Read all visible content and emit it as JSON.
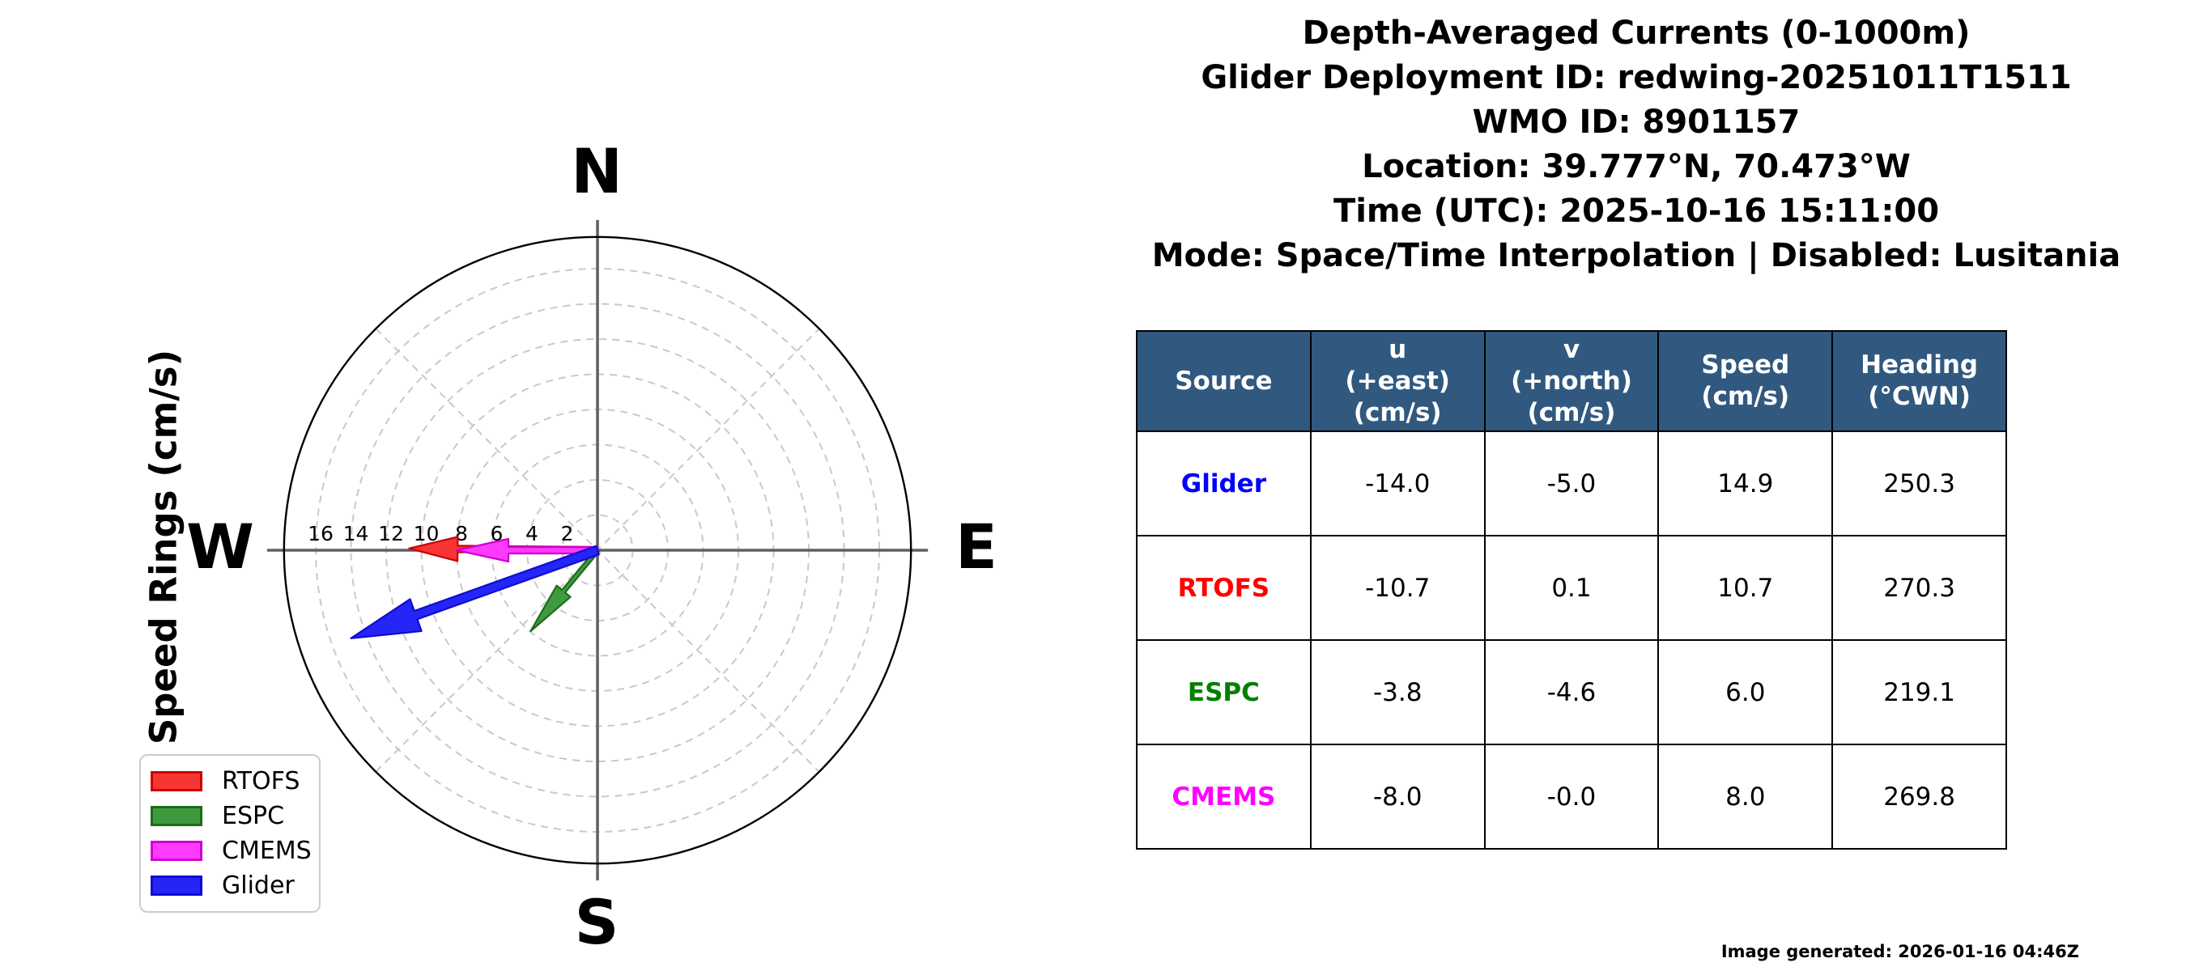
{
  "header": {
    "lines": [
      "Depth-Averaged Currents (0-1000m)",
      "Glider Deployment ID: redwing-20251011T1511",
      "WMO ID: 8901157",
      "Location: 39.777°N, 70.473°W",
      "Time (UTC): 2025-10-16 15:11:00",
      "Mode: Space/Time Interpolation | Disabled: Lusitania"
    ]
  },
  "table": {
    "header_bg": "#31597f",
    "columns": [
      "Source",
      "u\n(+east)\n(cm/s)",
      "v\n(+north)\n(cm/s)",
      "Speed\n(cm/s)",
      "Heading\n(°CWN)"
    ],
    "rows": [
      {
        "source": "Glider",
        "color": "#0000ff",
        "u": "-14.0",
        "v": "-5.0",
        "speed": "14.9",
        "heading": "250.3"
      },
      {
        "source": "RTOFS",
        "color": "#ff0000",
        "u": "-10.7",
        "v": "0.1",
        "speed": "10.7",
        "heading": "270.3"
      },
      {
        "source": "ESPC",
        "color": "#008000",
        "u": "-3.8",
        "v": "-4.6",
        "speed": "6.0",
        "heading": "219.1"
      },
      {
        "source": "CMEMS",
        "color": "#ff00ff",
        "u": "-8.0",
        "v": "-0.0",
        "speed": "8.0",
        "heading": "269.8"
      }
    ]
  },
  "chart_data": {
    "type": "polar_quiver",
    "axis_label": "Speed Rings (cm/s)",
    "compass": {
      "north": "N",
      "east": "E",
      "south": "S",
      "west": "W"
    },
    "ring_step": 2,
    "rings": [
      2,
      4,
      6,
      8,
      10,
      12,
      14,
      16
    ],
    "ring_labels": [
      "2",
      "4",
      "6",
      "8",
      "10",
      "12",
      "14",
      "16"
    ],
    "rmax": 17.8,
    "units": "cm/s",
    "series": [
      {
        "name": "RTOFS",
        "u": -10.7,
        "v": 0.1,
        "speed": 10.7,
        "heading": 270.3,
        "fill": "#f73535",
        "edge": "#cc0000",
        "shaft_w": 8,
        "head_len": 60,
        "head_w": 30
      },
      {
        "name": "ESPC",
        "u": -3.8,
        "v": -4.6,
        "speed": 6.0,
        "heading": 219.1,
        "fill": "#3f9a3f",
        "edge": "#1d6b1d",
        "shaft_w": 5,
        "head_len": 64,
        "head_w": 22
      },
      {
        "name": "CMEMS",
        "u": -8.0,
        "v": -0.0,
        "speed": 8.0,
        "heading": 269.8,
        "fill": "#fd3bfd",
        "edge": "#cf00cf",
        "shaft_w": 8,
        "head_len": 64,
        "head_w": 28
      },
      {
        "name": "Glider",
        "u": -14.0,
        "v": -5.0,
        "speed": 14.9,
        "heading": 250.3,
        "fill": "#2525f8",
        "edge": "#0d0dd0",
        "shaft_w": 11,
        "head_len": 85,
        "head_w": 42
      }
    ]
  },
  "legend": {
    "items": [
      {
        "label": "RTOFS",
        "fill": "#f73535",
        "edge": "#cc0000"
      },
      {
        "label": "ESPC",
        "fill": "#3f9a3f",
        "edge": "#1d6b1d"
      },
      {
        "label": "CMEMS",
        "fill": "#fd3bfd",
        "edge": "#cf00cf"
      },
      {
        "label": "Glider",
        "fill": "#2525f8",
        "edge": "#0d0dd0"
      }
    ]
  },
  "footnote": "Image generated: 2026-01-16 04:46Z"
}
